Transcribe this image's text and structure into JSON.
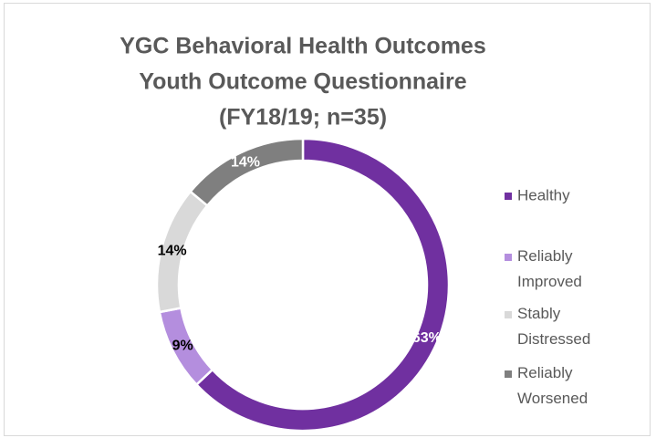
{
  "chart_data": {
    "type": "donut",
    "title": [
      "YGC Behavioral Health Outcomes",
      "Youth Outcome Questionnaire",
      "(FY18/19; n=35)"
    ],
    "categories": [
      "Healthy",
      "Reliably Improved",
      "Stably Distressed",
      "Reliably Worsened"
    ],
    "values": [
      63,
      9,
      14,
      14
    ],
    "value_labels": [
      "63%",
      "9%",
      "14%",
      "14%"
    ],
    "colors": [
      "#7030a0",
      "#b48ede",
      "#d9d9d9",
      "#7f7f7f"
    ],
    "legend": "right"
  }
}
